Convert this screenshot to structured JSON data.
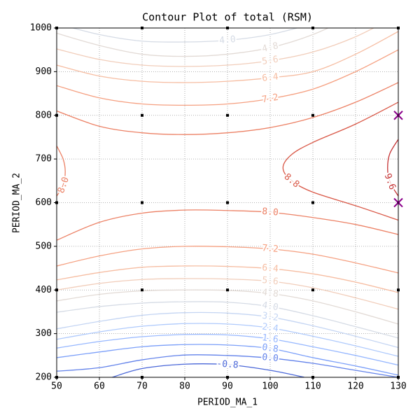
{
  "chart_data": {
    "type": "contour",
    "title": "Contour Plot of total (RSM)",
    "x_label": "PERIOD_MA_1",
    "y_label": "PERIOD_MA_2",
    "xlim": [
      50,
      130
    ],
    "ylim": [
      200,
      1000
    ],
    "xticks": [
      50,
      60,
      70,
      80,
      90,
      100,
      110,
      120,
      130
    ],
    "yticks": [
      200,
      300,
      400,
      500,
      600,
      700,
      800,
      900,
      1000
    ],
    "grid": true,
    "series": [
      {
        "label": "-0.8",
        "color": "#4a67d8",
        "x": [
          63,
          70,
          80,
          90,
          100,
          108
        ],
        "y": [
          200,
          220,
          230,
          229,
          216,
          200
        ]
      },
      {
        "label": "0.0",
        "color": "#6282ea",
        "x": [
          50,
          60,
          70,
          80,
          90,
          100,
          110,
          120,
          130
        ],
        "y": [
          214,
          222,
          240,
          251,
          250,
          244,
          232,
          216,
          200
        ]
      },
      {
        "label": "0.8",
        "color": "#7b9ff9",
        "x": [
          50,
          60,
          70,
          80,
          90,
          100,
          110,
          120,
          130
        ],
        "y": [
          245,
          258,
          270,
          275,
          274,
          266,
          245,
          226,
          205
        ]
      },
      {
        "label": "1.6",
        "color": "#96b7ff",
        "x": [
          50,
          60,
          70,
          80,
          90,
          100,
          110,
          120,
          130
        ],
        "y": [
          267,
          282,
          293,
          298,
          297,
          288,
          270,
          250,
          228
        ]
      },
      {
        "label": "2.4",
        "color": "#afcafc",
        "x": [
          50,
          60,
          70,
          80,
          90,
          100,
          110,
          120,
          130
        ],
        "y": [
          287,
          304,
          317,
          323,
          322,
          313,
          294,
          272,
          248
        ]
      },
      {
        "label": "3.2",
        "color": "#c4d5f3",
        "x": [
          50,
          60,
          70,
          80,
          90,
          100,
          110,
          120,
          130
        ],
        "y": [
          311,
          328,
          342,
          348,
          347,
          338,
          318,
          294,
          268
        ]
      },
      {
        "label": "4.0",
        "color": "#d5dbe5",
        "x": [
          50,
          60,
          70,
          80,
          90,
          100,
          110,
          120,
          130
        ],
        "y": [
          349,
          362,
          370,
          373,
          372,
          362,
          341,
          316,
          290
        ]
      },
      {
        "label": "4.8",
        "color": "#e2dad5",
        "x": [
          50,
          60,
          70,
          80,
          90,
          100,
          110,
          120,
          130
        ],
        "y": [
          375,
          390,
          398,
          400,
          399,
          392,
          375,
          350,
          322
        ]
      },
      {
        "label": "5.6",
        "color": "#f1cdba",
        "x": [
          50,
          60,
          70,
          80,
          90,
          100,
          110,
          120,
          130
        ],
        "y": [
          400,
          415,
          424,
          426,
          425,
          420,
          405,
          382,
          356
        ]
      },
      {
        "label": "6.4",
        "color": "#f6bda2",
        "x": [
          50,
          60,
          70,
          80,
          90,
          100,
          110,
          120,
          130
        ],
        "y": [
          423,
          440,
          452,
          455,
          454,
          449,
          437,
          418,
          394
        ]
      },
      {
        "label": "7.2",
        "color": "#f5a081",
        "x": [
          50,
          60,
          70,
          80,
          90,
          100,
          110,
          120,
          130
        ],
        "y": [
          455,
          478,
          494,
          500,
          499,
          494,
          482,
          462,
          439
        ]
      },
      {
        "label": "8.0",
        "color": "#ec8165",
        "x": [
          50,
          60,
          70,
          80,
          90,
          100,
          110,
          120,
          130
        ],
        "y": [
          514,
          555,
          576,
          583,
          582,
          578,
          566,
          550,
          527
        ]
      },
      {
        "color": "#ec8165",
        "x": [
          50,
          60,
          70,
          80,
          90,
          100,
          110,
          120,
          130
        ],
        "y": [
          810,
          775,
          760,
          756,
          760,
          772,
          795,
          830,
          875
        ]
      },
      {
        "label": "7.2",
        "color": "#f5a081",
        "x": [
          50,
          60,
          70,
          80,
          90,
          100,
          110,
          120,
          130
        ],
        "y": [
          868,
          840,
          826,
          823,
          826,
          838,
          860,
          900,
          950
        ]
      },
      {
        "label": "6.4",
        "color": "#f6bda2",
        "x": [
          50,
          60,
          70,
          80,
          90,
          100,
          110,
          120,
          130
        ],
        "y": [
          915,
          890,
          878,
          875,
          878,
          886,
          900,
          940,
          992
        ]
      },
      {
        "label": "5.6",
        "color": "#f1cdba",
        "x": [
          50,
          60,
          70,
          80,
          90,
          100,
          110,
          120,
          130
        ],
        "y": [
          952,
          928,
          915,
          912,
          915,
          925,
          945,
          980,
          1030
        ]
      },
      {
        "label": "4.8",
        "color": "#e2dad5",
        "x": [
          50,
          60,
          70,
          80,
          90,
          100,
          110,
          120
        ],
        "y": [
          988,
          960,
          940,
          935,
          940,
          955,
          985,
          1030
        ]
      },
      {
        "label": "4.0",
        "color": "#d5dbe5",
        "x": [
          50,
          60,
          70,
          80,
          90,
          100,
          110
        ],
        "y": [
          1010,
          985,
          970,
          968,
          972,
          985,
          1010
        ]
      },
      {
        "label": "8.0",
        "color": "#ec8165",
        "x": [
          50,
          51.5,
          52,
          51.5,
          50
        ],
        "y": [
          730,
          700,
          671,
          640,
          615
        ]
      },
      {
        "label": "8.8",
        "color": "#d95847",
        "x": [
          130,
          120,
          110,
          105,
          103,
          105,
          110,
          120,
          130
        ],
        "y": [
          830,
          780,
          738,
          710,
          680,
          650,
          624,
          593,
          560
        ]
      },
      {
        "label": "9.6",
        "color": "#c53334",
        "x": [
          130,
          128,
          127.5,
          128,
          130
        ],
        "y": [
          745,
          712,
          680,
          648,
          615
        ]
      }
    ],
    "points": [
      {
        "marker": "square",
        "color": "#000000",
        "x": [
          50,
          70,
          90,
          110,
          130,
          50,
          70,
          90,
          110,
          130,
          50,
          70,
          90,
          110,
          130,
          50,
          70,
          90,
          110,
          130,
          50,
          70,
          90,
          110,
          130
        ],
        "y": [
          200,
          200,
          200,
          200,
          200,
          400,
          400,
          400,
          400,
          400,
          600,
          600,
          600,
          600,
          600,
          800,
          800,
          800,
          800,
          800,
          1000,
          1000,
          1000,
          1000,
          1000
        ]
      },
      {
        "marker": "x",
        "color": "#8b008b",
        "x": [
          130,
          130
        ],
        "y": [
          800,
          600
        ]
      }
    ]
  }
}
